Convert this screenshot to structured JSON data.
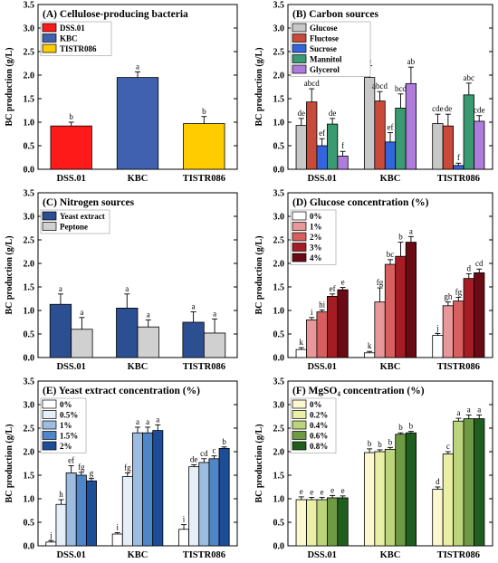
{
  "chart_data": [
    {
      "type": "bar",
      "title": "(A) Cellulose-producing bacteria",
      "ylabel": "BC production (g/L)",
      "ylim": [
        0,
        3.5
      ],
      "yticks": [
        "0.0",
        "0.5",
        "1.0",
        "1.5",
        "2.0",
        "2.5",
        "3.0",
        "3.5"
      ],
      "categories": [
        "DSS.01",
        "KBC",
        "TISTR086"
      ],
      "legend_placement": "top-left",
      "series": [
        {
          "name": "DSS.01",
          "color": "#ff1a1a",
          "values": [
            0.92,
            null,
            null
          ],
          "errors": [
            0.08,
            null,
            null
          ],
          "labels": [
            "b",
            null,
            null
          ]
        },
        {
          "name": "KBC",
          "color": "#4060b0",
          "values": [
            null,
            1.95,
            null
          ],
          "errors": [
            null,
            0.12,
            null
          ],
          "labels": [
            null,
            "a",
            null
          ]
        },
        {
          "name": "TISTR086",
          "color": "#ffcc00",
          "values": [
            null,
            null,
            0.97
          ],
          "errors": [
            null,
            null,
            0.15
          ],
          "labels": [
            null,
            null,
            "b"
          ]
        }
      ]
    },
    {
      "type": "bar",
      "title": "(B) Carbon sources",
      "ylabel": "BC production (g/L)",
      "ylim": [
        0,
        3.5
      ],
      "yticks": [
        "0.0",
        "0.5",
        "1.0",
        "1.5",
        "2.0",
        "2.5",
        "3.0",
        "3.5"
      ],
      "categories": [
        "DSS.01",
        "KBC",
        "TISTR086"
      ],
      "legend_placement": "top-left",
      "series": [
        {
          "name": "Glucose",
          "color": "#c8c8c8",
          "values": [
            0.93,
            1.95,
            0.97
          ],
          "errors": [
            0.15,
            0.25,
            0.2
          ],
          "labels": [
            "de",
            "a",
            "cde"
          ]
        },
        {
          "name": "Fluctose",
          "color": "#c84a3a",
          "values": [
            1.43,
            1.45,
            0.92
          ],
          "errors": [
            0.28,
            0.2,
            0.25
          ],
          "labels": [
            "abcd",
            "abcd",
            "de"
          ]
        },
        {
          "name": "Sucrose",
          "color": "#3366dd",
          "values": [
            0.5,
            0.58,
            0.08
          ],
          "errors": [
            0.15,
            0.2,
            0.05
          ],
          "labels": [
            "ef",
            "ef",
            "f"
          ]
        },
        {
          "name": "Mannitol",
          "color": "#3a9a72",
          "values": [
            0.96,
            1.3,
            1.58
          ],
          "errors": [
            0.12,
            0.3,
            0.25
          ],
          "labels": [
            "de",
            "bcd",
            "abc"
          ]
        },
        {
          "name": "Glycerol",
          "color": "#b07cdc",
          "values": [
            0.28,
            1.82,
            1.02
          ],
          "errors": [
            0.1,
            0.35,
            0.12
          ],
          "labels": [
            "f",
            "ab",
            "cde"
          ]
        }
      ]
    },
    {
      "type": "bar",
      "title": "(C) Nitrogen sources",
      "ylabel": "BC production (g/L)",
      "ylim": [
        0,
        3.5
      ],
      "yticks": [
        "0.0",
        "0.5",
        "1.0",
        "1.5",
        "2.0",
        "2.5",
        "3.0",
        "3.5"
      ],
      "categories": [
        "DSS.01",
        "KBC",
        "TISTR086"
      ],
      "legend_placement": "top-left",
      "series": [
        {
          "name": "Yeast extract",
          "color": "#2c4f92",
          "values": [
            1.13,
            1.05,
            0.75
          ],
          "errors": [
            0.22,
            0.3,
            0.22
          ],
          "labels": [
            "a",
            "a",
            "a"
          ]
        },
        {
          "name": "Peptone",
          "color": "#d0d0d0",
          "values": [
            0.6,
            0.65,
            0.52
          ],
          "errors": [
            0.25,
            0.15,
            0.3
          ],
          "labels": [
            "a",
            "a",
            "a"
          ]
        }
      ]
    },
    {
      "type": "bar",
      "title": "(D) Glucose concentration (%)",
      "ylabel": "BC production (g/L)",
      "ylim": [
        0,
        3.5
      ],
      "yticks": [
        "0.0",
        "0.5",
        "1.0",
        "1.5",
        "2.0",
        "2.5",
        "3.0",
        "3.5"
      ],
      "categories": [
        "DSS.01",
        "KBC",
        "TISTR086"
      ],
      "legend_placement": "top-left",
      "series": [
        {
          "name": "0%",
          "color": "#ffffff",
          "values": [
            0.17,
            0.1,
            0.47
          ],
          "errors": [
            0.04,
            0.03,
            0.04
          ],
          "labels": [
            "k",
            "k",
            "j"
          ]
        },
        {
          "name": "1%",
          "color": "#e89898",
          "values": [
            0.8,
            1.18,
            1.1
          ],
          "errors": [
            0.05,
            0.3,
            0.08
          ],
          "labels": [
            "i",
            "fg",
            "gh"
          ]
        },
        {
          "name": "2%",
          "color": "#d85f5f",
          "values": [
            0.97,
            1.98,
            1.2
          ],
          "errors": [
            0.04,
            0.1,
            0.08
          ],
          "labels": [
            "hi",
            "bc",
            "fg"
          ]
        },
        {
          "name": "3%",
          "color": "#a51c24",
          "values": [
            1.3,
            2.15,
            1.68
          ],
          "errors": [
            0.05,
            0.3,
            0.1
          ],
          "labels": [
            "ef",
            "b",
            "d"
          ]
        },
        {
          "name": "4%",
          "color": "#6a0a14",
          "values": [
            1.44,
            2.45,
            1.8
          ],
          "errors": [
            0.05,
            0.12,
            0.08
          ],
          "labels": [
            "e",
            "a",
            "cd"
          ]
        }
      ]
    },
    {
      "type": "bar",
      "title": "(E) Yeast extract concentration (%)",
      "ylabel": "BC production (g/L)",
      "ylim": [
        0,
        3.5
      ],
      "yticks": [
        "0.0",
        "0.5",
        "1.0",
        "1.5",
        "2.0",
        "2.5",
        "3.0",
        "3.5"
      ],
      "categories": [
        "DSS.01",
        "KBC",
        "TISTR086"
      ],
      "legend_placement": "top-left",
      "series": [
        {
          "name": "0%",
          "color": "#ffffff",
          "values": [
            0.08,
            0.25,
            0.35
          ],
          "errors": [
            0.03,
            0.03,
            0.1
          ],
          "labels": [
            "j",
            "i",
            "i"
          ]
        },
        {
          "name": "0.5%",
          "color": "#e6eff8",
          "values": [
            0.88,
            1.47,
            1.68
          ],
          "errors": [
            0.1,
            0.08,
            0.04
          ],
          "labels": [
            "h",
            "fg",
            "de"
          ]
        },
        {
          "name": "1%",
          "color": "#9cbde0",
          "values": [
            1.55,
            2.4,
            1.77
          ],
          "errors": [
            0.15,
            0.12,
            0.08
          ],
          "labels": [
            "ef",
            "a",
            "cd"
          ]
        },
        {
          "name": "1.5%",
          "color": "#4e86c8",
          "values": [
            1.5,
            2.4,
            1.85
          ],
          "errors": [
            0.06,
            0.12,
            0.06
          ],
          "labels": [
            "fg",
            "a",
            "c"
          ]
        },
        {
          "name": "2%",
          "color": "#1e4d98",
          "values": [
            1.38,
            2.45,
            2.07
          ],
          "errors": [
            0.05,
            0.12,
            0.03
          ],
          "labels": [
            "g",
            "a",
            "b"
          ]
        }
      ]
    },
    {
      "type": "bar",
      "title": "(F) MgSO₄ concentration (%)",
      "ylabel": "BC production (g/L)",
      "ylim": [
        0,
        3.5
      ],
      "yticks": [
        "0.0",
        "0.5",
        "1.0",
        "1.5",
        "2.0",
        "2.5",
        "3.0",
        "3.5"
      ],
      "categories": [
        "DSS.01",
        "KBC",
        "TISTR086"
      ],
      "legend_placement": "top-left",
      "series": [
        {
          "name": "0%",
          "color": "#fbf8cf",
          "values": [
            0.98,
            1.98,
            1.2
          ],
          "errors": [
            0.06,
            0.08,
            0.05
          ],
          "labels": [
            "e",
            "b",
            "d"
          ]
        },
        {
          "name": "0.2%",
          "color": "#e9efa4",
          "values": [
            0.98,
            2.0,
            1.95
          ],
          "errors": [
            0.05,
            0.04,
            0.05
          ],
          "labels": [
            "e",
            "b",
            "c"
          ]
        },
        {
          "name": "0.4%",
          "color": "#bcd57c",
          "values": [
            0.98,
            2.05,
            2.65
          ],
          "errors": [
            0.05,
            0.04,
            0.06
          ],
          "labels": [
            "e",
            "b",
            "a"
          ]
        },
        {
          "name": "0.6%",
          "color": "#6f9a44",
          "values": [
            1.02,
            2.37,
            2.7
          ],
          "errors": [
            0.05,
            0.03,
            0.08
          ],
          "labels": [
            "e",
            "b",
            "a"
          ]
        },
        {
          "name": "0.8%",
          "color": "#1f5e1f",
          "values": [
            1.02,
            2.4,
            2.7
          ],
          "errors": [
            0.04,
            0.03,
            0.08
          ],
          "labels": [
            "e",
            "b",
            "a"
          ]
        }
      ]
    }
  ]
}
